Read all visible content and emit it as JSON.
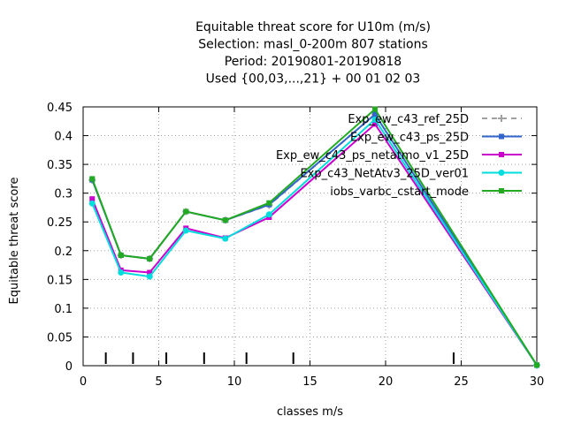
{
  "chart_data": {
    "type": "line",
    "title_lines": [
      "Equitable threat score  for U10m (m/s)",
      "Selection: masl_0-200m    807 stations",
      "Period: 20190801-20190818",
      "Used {00,03,...,21} + 00 01 02 03"
    ],
    "xlabel": "classes m/s",
    "ylabel": "Equitable threat score",
    "xlim": [
      0,
      30
    ],
    "ylim": [
      0,
      0.45
    ],
    "x_ticks": [
      "0",
      "5",
      "10",
      "15",
      "20",
      "25",
      "30"
    ],
    "y_ticks": [
      "0",
      "0.05",
      "0.1",
      "0.15",
      "0.2",
      "0.25",
      "0.3",
      "0.35",
      "0.4",
      "0.45"
    ],
    "class_markers": [
      1.5,
      3.3,
      5.5,
      8.0,
      10.8,
      13.9,
      24.5
    ],
    "x": [
      0.6,
      2.5,
      4.4,
      6.8,
      9.4,
      12.3,
      19.3,
      30.0
    ],
    "series": [
      {
        "name": "Exp_ew_c43_ref_25D",
        "color": "#a0a0a0",
        "dashed": true,
        "marker": "plus",
        "values": [
          0.323,
          0.192,
          0.186,
          0.268,
          0.253,
          0.279,
          0.437,
          0.001
        ]
      },
      {
        "name": "Exp_ew_c43_ps_25D",
        "color": "#3366cc",
        "dashed": false,
        "marker": "square",
        "values": [
          0.323,
          0.192,
          0.186,
          0.268,
          0.253,
          0.28,
          0.437,
          0.001
        ]
      },
      {
        "name": "Exp_ew_c43_ps_netatmo_v1_25D",
        "color": "#cc00cc",
        "dashed": false,
        "marker": "square",
        "values": [
          0.29,
          0.166,
          0.162,
          0.239,
          0.222,
          0.258,
          0.42,
          0.001
        ]
      },
      {
        "name": "Exp_c43_NetAtv3_25D_ver01",
        "color": "#00dddd",
        "dashed": false,
        "marker": "circle",
        "values": [
          0.282,
          0.162,
          0.155,
          0.235,
          0.221,
          0.263,
          0.428,
          0.001
        ]
      },
      {
        "name": "iobs_varbc_cstart_mode",
        "color": "#22aa22",
        "dashed": false,
        "marker": "square",
        "values": [
          0.325,
          0.192,
          0.186,
          0.268,
          0.253,
          0.283,
          0.446,
          0.001
        ]
      }
    ]
  }
}
